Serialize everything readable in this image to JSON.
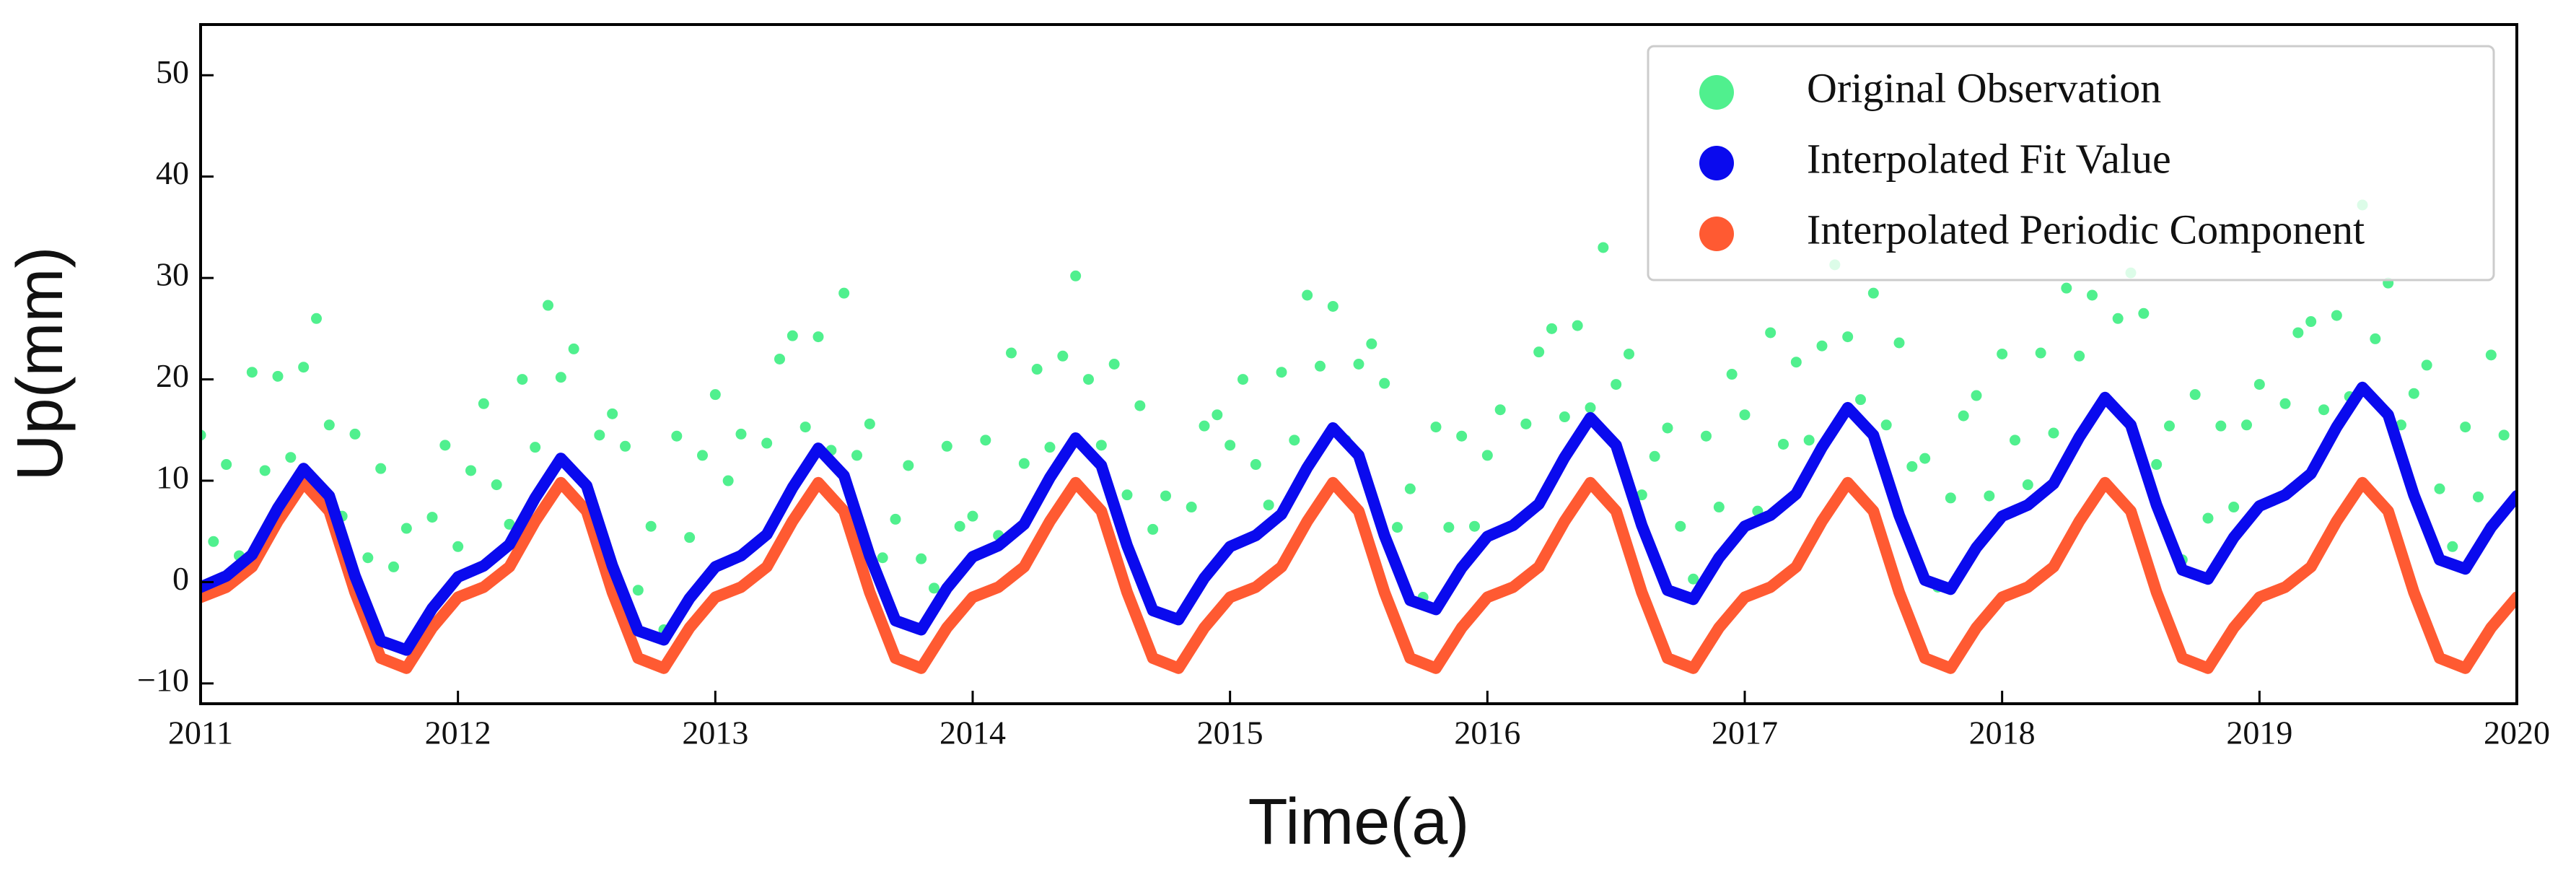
{
  "chart_data": {
    "type": "line",
    "xlabel": "Time(a)",
    "ylabel": "Up(mm)",
    "xlim": [
      2011,
      2020
    ],
    "ylim": [
      -12,
      55
    ],
    "xticks": [
      2011,
      2012,
      2013,
      2014,
      2015,
      2016,
      2017,
      2018,
      2019,
      2020
    ],
    "yticks": [
      {
        "value": -10,
        "label": "−10"
      },
      0,
      10,
      20,
      30,
      40,
      50
    ],
    "legend": "upper right",
    "x": [
      2011,
      2011.1,
      2011.2,
      2011.3,
      2011.4,
      2011.5,
      2011.6,
      2011.7,
      2011.8,
      2011.9,
      2012,
      2012.1,
      2012.2,
      2012.3,
      2012.4,
      2012.5,
      2012.6,
      2012.7,
      2012.8,
      2012.9,
      2013,
      2013.1,
      2013.2,
      2013.3,
      2013.4,
      2013.5,
      2013.6,
      2013.7,
      2013.8,
      2013.9,
      2014,
      2014.1,
      2014.2,
      2014.3,
      2014.4,
      2014.5,
      2014.6,
      2014.7,
      2014.8,
      2014.9,
      2015,
      2015.1,
      2015.2,
      2015.3,
      2015.4,
      2015.5,
      2015.6,
      2015.7,
      2015.8,
      2015.9,
      2016,
      2016.1,
      2016.2,
      2016.3,
      2016.4,
      2016.5,
      2016.6,
      2016.7,
      2016.8,
      2016.9,
      2017,
      2017.1,
      2017.2,
      2017.3,
      2017.4,
      2017.5,
      2017.6,
      2017.7,
      2017.8,
      2017.9,
      2018,
      2018.1,
      2018.2,
      2018.3,
      2018.4,
      2018.5,
      2018.6,
      2018.7,
      2018.8,
      2018.9,
      2019,
      2019.1,
      2019.2,
      2019.3,
      2019.4,
      2019.5,
      2019.6,
      2019.7,
      2019.8,
      2019.9,
      2020
    ],
    "series": [
      {
        "name": "Original Observation",
        "type": "scatter",
        "color": "#50f08e",
        "x": [
          2011,
          2011.05,
          2011.1,
          2011.15,
          2011.2,
          2011.25,
          2011.3,
          2011.35,
          2011.4,
          2011.45,
          2011.5,
          2011.55,
          2011.6,
          2011.65,
          2011.7,
          2011.75,
          2011.8,
          2011.85,
          2011.9,
          2011.95,
          2012,
          2012.05,
          2012.1,
          2012.15,
          2012.2,
          2012.25,
          2012.3,
          2012.35,
          2012.4,
          2012.45,
          2012.5,
          2012.55,
          2012.6,
          2012.65,
          2012.7,
          2012.75,
          2012.8,
          2012.85,
          2012.9,
          2012.95,
          2013,
          2013.05,
          2013.1,
          2013.15,
          2013.2,
          2013.25,
          2013.3,
          2013.35,
          2013.4,
          2013.45,
          2013.5,
          2013.55,
          2013.6,
          2013.65,
          2013.7,
          2013.75,
          2013.8,
          2013.85,
          2013.9,
          2013.95,
          2014,
          2014.05,
          2014.1,
          2014.15,
          2014.2,
          2014.25,
          2014.3,
          2014.35,
          2014.4,
          2014.45,
          2014.5,
          2014.55,
          2014.6,
          2014.65,
          2014.7,
          2014.75,
          2014.8,
          2014.85,
          2014.9,
          2014.95,
          2015,
          2015.05,
          2015.1,
          2015.15,
          2015.2,
          2015.25,
          2015.3,
          2015.35,
          2015.4,
          2015.45,
          2015.5,
          2015.55,
          2015.6,
          2015.65,
          2015.7,
          2015.75,
          2015.8,
          2015.85,
          2015.9,
          2015.95,
          2016,
          2016.05,
          2016.1,
          2016.15,
          2016.2,
          2016.25,
          2016.3,
          2016.35,
          2016.4,
          2016.45,
          2016.5,
          2016.55,
          2016.6,
          2016.65,
          2016.7,
          2016.75,
          2016.8,
          2016.85,
          2016.9,
          2016.95,
          2017,
          2017.05,
          2017.1,
          2017.15,
          2017.2,
          2017.25,
          2017.3,
          2017.35,
          2017.4,
          2017.45,
          2017.5,
          2017.55,
          2017.6,
          2017.65,
          2017.7,
          2017.75,
          2017.8,
          2017.85,
          2017.9,
          2017.95,
          2018,
          2018.05,
          2018.1,
          2018.15,
          2018.2,
          2018.25,
          2018.3,
          2018.35,
          2018.4,
          2018.45,
          2018.5,
          2018.55,
          2018.6,
          2018.65,
          2018.7,
          2018.75,
          2018.8,
          2018.85,
          2018.9,
          2018.95,
          2019,
          2019.05,
          2019.1,
          2019.15,
          2019.2,
          2019.25,
          2019.3,
          2019.35,
          2019.4,
          2019.45,
          2019.5,
          2019.55,
          2019.6,
          2019.65,
          2019.7,
          2019.75,
          2019.8,
          2019.85,
          2019.9,
          2019.95
        ],
        "values": [
          14.5,
          4,
          11.6,
          2.6,
          20.7,
          11,
          20.3,
          12.3,
          21.2,
          26,
          15.5,
          6.5,
          14.6,
          2.4,
          11.2,
          1.5,
          5.3,
          -4.6,
          6.4,
          13.5,
          3.5,
          11,
          17.6,
          9.6,
          5.7,
          20,
          13.3,
          27.3,
          20.2,
          23,
          9.5,
          14.5,
          16.6,
          13.4,
          -0.8,
          5.5,
          -4.7,
          14.4,
          4.4,
          12.5,
          18.5,
          10,
          14.6,
          3.6,
          13.7,
          22,
          24.3,
          15.3,
          24.2,
          13,
          28.5,
          12.5,
          15.6,
          2.4,
          6.2,
          11.5,
          2.3,
          -0.6,
          13.4,
          5.5,
          6.5,
          14,
          4.6,
          22.6,
          11.7,
          21,
          13.3,
          22.3,
          30.2,
          20,
          13.5,
          21.5,
          8.6,
          17.4,
          5.2,
          8.5,
          -3.7,
          7.4,
          15.4,
          16.5,
          13.5,
          20,
          11.6,
          7.6,
          20.7,
          14,
          28.3,
          21.3,
          27.2,
          14,
          21.5,
          23.5,
          19.6,
          5.4,
          9.2,
          -1.5,
          15.3,
          5.4,
          14.4,
          5.5,
          12.5,
          17,
          5.6,
          15.6,
          22.7,
          25,
          16.3,
          25.3,
          17.2,
          33,
          19.5,
          22.5,
          8.6,
          12.4,
          15.2,
          5.5,
          0.3,
          14.4,
          7.4,
          20.5,
          16.5,
          7,
          24.6,
          13.6,
          21.7,
          14,
          23.3,
          31.3,
          24.2,
          18,
          28.5,
          15.5,
          23.6,
          11.4,
          12.2,
          -0.5,
          8.3,
          16.4,
          18.4,
          8.5,
          22.5,
          14,
          9.6,
          22.6,
          14.7,
          29,
          22.3,
          28.3,
          18.2,
          26,
          30.5,
          26.5,
          11.6,
          15.4,
          2.2,
          18.5,
          6.3,
          15.4,
          7.4,
          15.5,
          19.5,
          8,
          17.6,
          24.6,
          25.7,
          17,
          26.3,
          18.3,
          37.2,
          24,
          29.5,
          15.5,
          18.6,
          21.4,
          9.2,
          3.5,
          15.3,
          8.4,
          22.4,
          14.5
        ]
      },
      {
        "name": "Interpolated Fit Value",
        "type": "line",
        "color": "#0a0aee",
        "values": [
          -0.5,
          0.6,
          2.7,
          7.3,
          11.2,
          8.5,
          0.6,
          -5.8,
          -6.7,
          -2.6,
          0.5,
          1.6,
          3.7,
          8.3,
          12.2,
          9.5,
          1.6,
          -4.8,
          -5.7,
          -1.6,
          1.5,
          2.6,
          4.7,
          9.3,
          13.2,
          10.5,
          2.6,
          -3.8,
          -4.7,
          -0.6,
          2.5,
          3.6,
          5.7,
          10.3,
          14.2,
          11.5,
          3.6,
          -2.8,
          -3.7,
          0.4,
          3.5,
          4.6,
          6.7,
          11.3,
          15.2,
          12.5,
          4.6,
          -1.8,
          -2.7,
          1.4,
          4.5,
          5.6,
          7.7,
          12.3,
          16.2,
          13.5,
          5.6,
          -0.8,
          -1.7,
          2.4,
          5.5,
          6.6,
          8.7,
          13.3,
          17.2,
          14.5,
          6.6,
          0.2,
          -0.7,
          3.4,
          6.5,
          7.6,
          9.7,
          14.3,
          18.2,
          15.5,
          7.6,
          1.2,
          0.3,
          4.4,
          7.5,
          8.6,
          10.7,
          15.3,
          19.2,
          16.5,
          8.6,
          2.2,
          1.3,
          5.4,
          8.5
        ]
      },
      {
        "name": "Interpolated Periodic Component",
        "type": "line",
        "color": "#ff5a32",
        "values": [
          -1.5,
          -0.5,
          1.5,
          6,
          9.8,
          7,
          -1,
          -7.5,
          -8.5,
          -4.5,
          -1.5,
          -0.5,
          1.5,
          6,
          9.8,
          7,
          -1,
          -7.5,
          -8.5,
          -4.5,
          -1.5,
          -0.5,
          1.5,
          6,
          9.8,
          7,
          -1,
          -7.5,
          -8.5,
          -4.5,
          -1.5,
          -0.5,
          1.5,
          6,
          9.8,
          7,
          -1,
          -7.5,
          -8.5,
          -4.5,
          -1.5,
          -0.5,
          1.5,
          6,
          9.8,
          7,
          -1,
          -7.5,
          -8.5,
          -4.5,
          -1.5,
          -0.5,
          1.5,
          6,
          9.8,
          7,
          -1,
          -7.5,
          -8.5,
          -4.5,
          -1.5,
          -0.5,
          1.5,
          6,
          9.8,
          7,
          -1,
          -7.5,
          -8.5,
          -4.5,
          -1.5,
          -0.5,
          1.5,
          6,
          9.8,
          7,
          -1,
          -7.5,
          -8.5,
          -4.5,
          -1.5,
          -0.5,
          1.5,
          6,
          9.8,
          7,
          -1,
          -7.5,
          -8.5,
          -4.5,
          -1.5
        ]
      }
    ]
  }
}
